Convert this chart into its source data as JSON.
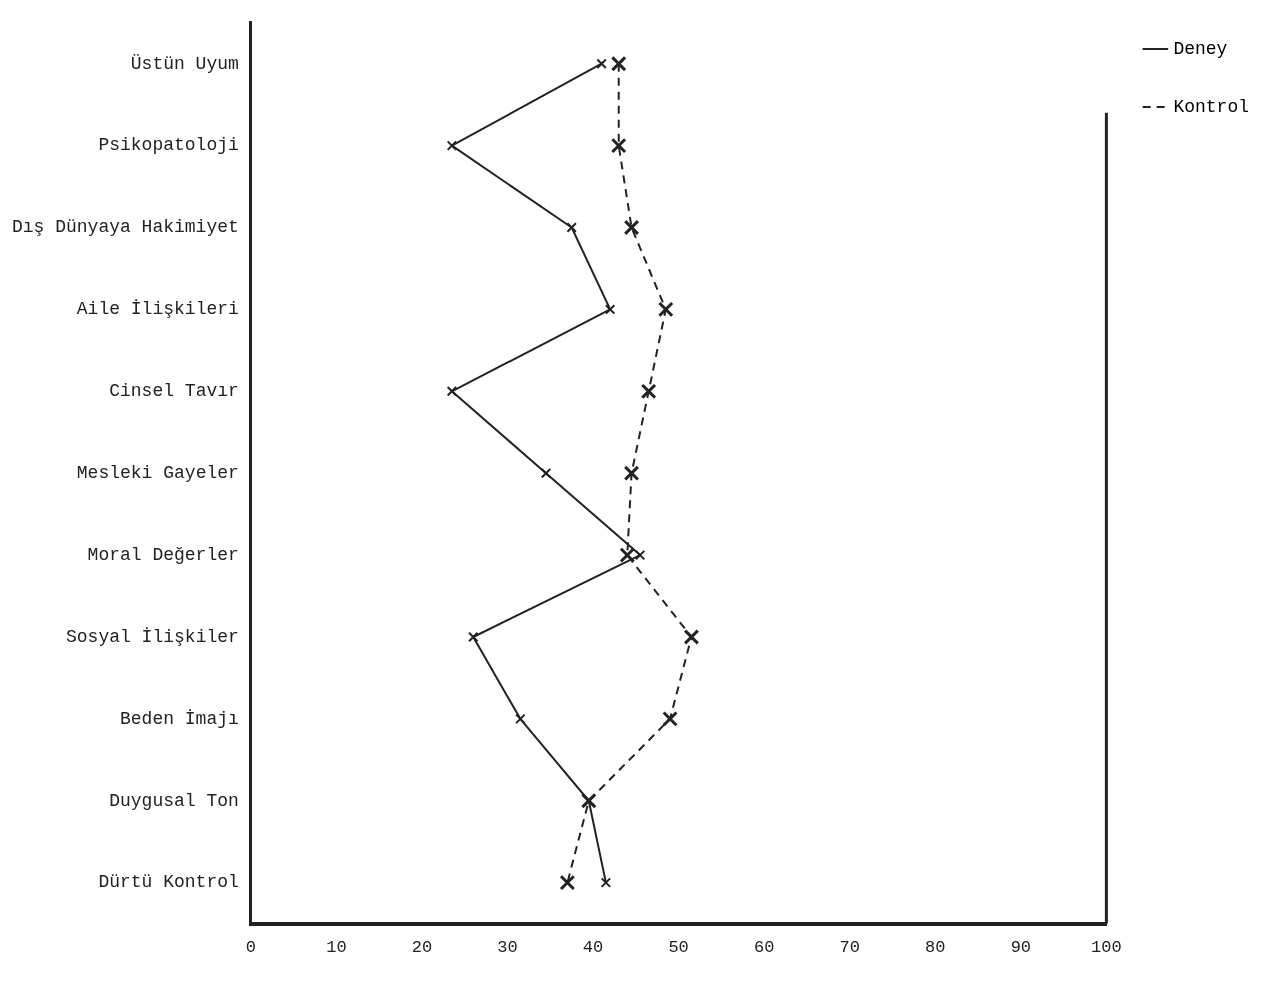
{
  "chart_data": {
    "type": "line",
    "orientation": "horizontal",
    "categories": [
      "Üstün Uyum",
      "Psikopatoloji",
      "Dış Dünyaya Hakimiyet",
      "Aile İlişkileri",
      "Cinsel Tavır",
      "Mesleki Gayeler",
      "Moral Değerler",
      "Sosyal İlişkiler",
      "Beden İmajı",
      "Duygusal Ton",
      "Dürtü Kontrol"
    ],
    "series": [
      {
        "name": "Deney",
        "color": "#222222",
        "line_style": "solid",
        "values": [
          41,
          23.5,
          37.5,
          42,
          23.5,
          34.5,
          45.5,
          26,
          31.5,
          39.5,
          41.5
        ]
      },
      {
        "name": "Kontrol",
        "color": "#222222",
        "line_style": "dashed",
        "values": [
          43,
          43,
          44.5,
          48.5,
          46.5,
          44.5,
          44,
          51.5,
          49,
          39.5,
          37
        ]
      }
    ],
    "xlim": [
      0,
      100
    ],
    "xticks": [
      0,
      10,
      20,
      30,
      40,
      50,
      60,
      70,
      80,
      90,
      100
    ],
    "grid": false,
    "legend": "top right",
    "marker": "cross"
  }
}
